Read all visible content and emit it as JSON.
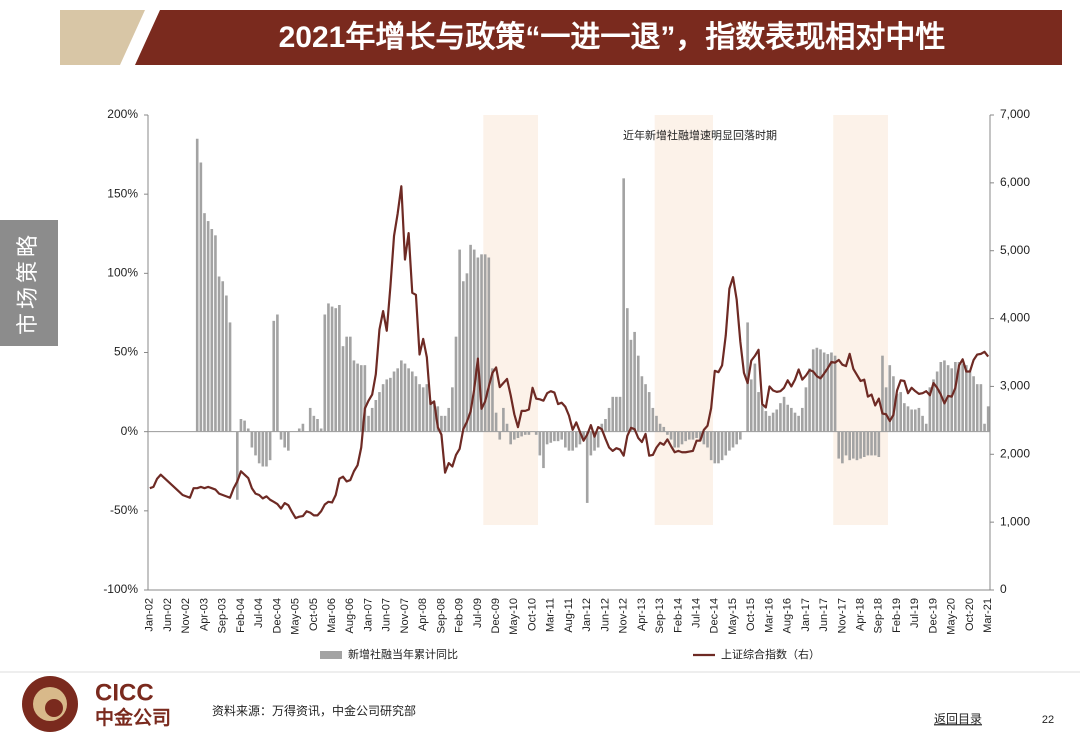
{
  "header": {
    "title": "2021年增长与政策“一进一退”，指数表现相对中性"
  },
  "sidebar": {
    "label": "市场策略"
  },
  "logo": {
    "en": "CICC",
    "zh": "中金公司"
  },
  "source": "资料来源：万得资讯，中金公司研究部",
  "footer": {
    "link": "返回目录",
    "page": 22
  },
  "chart_data": {
    "type": "combo",
    "annotation": "近年新增社融增速明显回落时期",
    "highlights": [
      {
        "from": 92,
        "to": 106
      },
      {
        "from": 139,
        "to": 154
      },
      {
        "from": 188,
        "to": 202
      }
    ],
    "categories": [
      "Jan-02",
      null,
      null,
      null,
      null,
      "Jun-02",
      null,
      null,
      null,
      null,
      "Nov-02",
      null,
      null,
      null,
      null,
      "Apr-03",
      null,
      null,
      null,
      null,
      "Sep-03",
      null,
      null,
      null,
      null,
      "Feb-04",
      null,
      null,
      null,
      null,
      "Jul-04",
      null,
      null,
      null,
      null,
      "Dec-04",
      null,
      null,
      null,
      null,
      "May-05",
      null,
      null,
      null,
      null,
      "Oct-05",
      null,
      null,
      null,
      null,
      "Mar-06",
      null,
      null,
      null,
      null,
      "Aug-06",
      null,
      null,
      null,
      null,
      "Jan-07",
      null,
      null,
      null,
      null,
      "Jun-07",
      null,
      null,
      null,
      null,
      "Nov-07",
      null,
      null,
      null,
      null,
      "Apr-08",
      null,
      null,
      null,
      null,
      "Sep-08",
      null,
      null,
      null,
      null,
      "Feb-09",
      null,
      null,
      null,
      null,
      "Jul-09",
      null,
      null,
      null,
      null,
      "Dec-09",
      null,
      null,
      null,
      null,
      "May-10",
      null,
      null,
      null,
      null,
      "Oct-10",
      null,
      null,
      null,
      null,
      "Mar-11",
      null,
      null,
      null,
      null,
      "Aug-11",
      null,
      null,
      null,
      null,
      "Jan-12",
      null,
      null,
      null,
      null,
      "Jun-12",
      null,
      null,
      null,
      null,
      "Nov-12",
      null,
      null,
      null,
      null,
      "Apr-13",
      null,
      null,
      null,
      null,
      "Sep-13",
      null,
      null,
      null,
      null,
      "Feb-14",
      null,
      null,
      null,
      null,
      "Jul-14",
      null,
      null,
      null,
      null,
      "Dec-14",
      null,
      null,
      null,
      null,
      "May-15",
      null,
      null,
      null,
      null,
      "Oct-15",
      null,
      null,
      null,
      null,
      "Mar-16",
      null,
      null,
      null,
      null,
      "Aug-16",
      null,
      null,
      null,
      null,
      "Jan-17",
      null,
      null,
      null,
      null,
      "Jun-17",
      null,
      null,
      null,
      null,
      "Nov-17",
      null,
      null,
      null,
      null,
      "Apr-18",
      null,
      null,
      null,
      null,
      "Sep-18",
      null,
      null,
      null,
      null,
      "Feb-19",
      null,
      null,
      null,
      null,
      "Jul-19",
      null,
      null,
      null,
      null,
      "Dec-19",
      null,
      null,
      null,
      null,
      "May-20",
      null,
      null,
      null,
      null,
      "Oct-20",
      null,
      null,
      null,
      null,
      "Mar-21"
    ],
    "series": [
      {
        "name": "新增社融当年累计同比",
        "type": "bar",
        "color": "#a3a3a3",
        "values": [
          null,
          null,
          null,
          null,
          null,
          null,
          null,
          null,
          null,
          null,
          null,
          null,
          null,
          185,
          170,
          138,
          133,
          128,
          124,
          98,
          95,
          86,
          69,
          0,
          -43,
          8,
          7,
          2,
          -10,
          -15,
          -20,
          -22,
          -22,
          -18,
          70,
          74,
          -5,
          -10,
          -12,
          0,
          0,
          2,
          5,
          0,
          15,
          10,
          8,
          2,
          74,
          81,
          79,
          78,
          80,
          54,
          60,
          60,
          45,
          43,
          42,
          42,
          10,
          15,
          20,
          25,
          30,
          33,
          34,
          38,
          40,
          45,
          43,
          40,
          38,
          35,
          30,
          28,
          30,
          20,
          18,
          16,
          10,
          10,
          15,
          28,
          60,
          115,
          95,
          100,
          118,
          115,
          110,
          112,
          112,
          110,
          40,
          12,
          -5,
          15,
          5,
          -8,
          -5,
          -4,
          -3,
          -2,
          -2,
          0,
          -2,
          -15,
          -23,
          -8,
          -7,
          -6,
          -6,
          -5,
          -10,
          -12,
          -12,
          -10,
          -8,
          -5,
          -45,
          -15,
          -12,
          -10,
          5,
          8,
          15,
          22,
          22,
          22,
          160,
          78,
          58,
          63,
          48,
          35,
          30,
          25,
          15,
          10,
          5,
          3,
          -2,
          -5,
          -10,
          -10,
          -8,
          -6,
          -5,
          -5,
          -4,
          -6,
          -8,
          -10,
          -18,
          -20,
          -20,
          -18,
          -15,
          -12,
          -10,
          -8,
          -5,
          0,
          69,
          33,
          43,
          25,
          17,
          13,
          10,
          12,
          14,
          18,
          22,
          17,
          15,
          12,
          10,
          15,
          28,
          40,
          52,
          53,
          52,
          50,
          49,
          50,
          48,
          -17,
          -20,
          -15,
          -18,
          -17,
          -18,
          -17,
          -16,
          -15,
          -15,
          -15,
          -16,
          48,
          28,
          42,
          35,
          24,
          25,
          18,
          16,
          14,
          14,
          15,
          10,
          5,
          28,
          33,
          38,
          44,
          45,
          42,
          40,
          44,
          44,
          43,
          42,
          38,
          35,
          30,
          30,
          5,
          16
        ]
      },
      {
        "name": "上证综合指数（右）",
        "type": "line",
        "axis": "y2",
        "color": "#6e2a24",
        "values": [
          1500,
          1520,
          1640,
          1700,
          1650,
          1600,
          1550,
          1500,
          1450,
          1400,
          1380,
          1360,
          1500,
          1500,
          1520,
          1500,
          1520,
          1500,
          1480,
          1420,
          1400,
          1380,
          1360,
          1500,
          1600,
          1750,
          1700,
          1650,
          1500,
          1420,
          1400,
          1350,
          1380,
          1330,
          1300,
          1266,
          1200,
          1280,
          1250,
          1150,
          1060,
          1080,
          1090,
          1160,
          1140,
          1100,
          1100,
          1160,
          1260,
          1300,
          1290,
          1400,
          1640,
          1670,
          1600,
          1620,
          1750,
          1840,
          2100,
          2675,
          2790,
          2880,
          3180,
          3840,
          4110,
          3820,
          4470,
          5220,
          5550,
          5950,
          4870,
          5260,
          4380,
          4350,
          3470,
          3700,
          3430,
          2740,
          2780,
          2400,
          2290,
          1730,
          1870,
          1820,
          1990,
          2080,
          2370,
          2480,
          2630,
          2960,
          3410,
          2670,
          2780,
          3000,
          3200,
          3280,
          2990,
          3050,
          3110,
          2870,
          2590,
          2400,
          2640,
          2640,
          2660,
          2980,
          2820,
          2810,
          2790,
          2900,
          2930,
          2910,
          2740,
          2760,
          2700,
          2570,
          2360,
          2470,
          2330,
          2200,
          2290,
          2430,
          2260,
          2400,
          2370,
          2230,
          2100,
          2050,
          2090,
          2070,
          1980,
          2270,
          2390,
          2370,
          2240,
          2180,
          2300,
          1980,
          1990,
          2100,
          2170,
          2140,
          2220,
          2120,
          2030,
          2050,
          2030,
          2030,
          2040,
          2050,
          2200,
          2200,
          2360,
          2420,
          2680,
          3230,
          3210,
          3310,
          3750,
          4440,
          4610,
          4280,
          3660,
          3200,
          3050,
          3380,
          3450,
          3540,
          2740,
          2690,
          3000,
          2940,
          2920,
          2930,
          2980,
          3090,
          3000,
          3100,
          3250,
          3100,
          3160,
          3240,
          3220,
          3150,
          3120,
          3190,
          3270,
          3360,
          3350,
          3390,
          3320,
          3300,
          3480,
          3260,
          3170,
          3080,
          3100,
          2850,
          2880,
          2720,
          2820,
          2600,
          2590,
          2490,
          2580,
          2940,
          3090,
          3080,
          2900,
          2980,
          2930,
          2890,
          2900,
          2930,
          2870,
          3050,
          2980,
          2880,
          2750,
          2860,
          2850,
          2980,
          3310,
          3400,
          3220,
          3220,
          3390,
          3470,
          3480,
          3510,
          3440
        ]
      }
    ],
    "ylim": [
      -100,
      200
    ],
    "yticks": [
      {
        "value": -100,
        "label": "-100%"
      },
      {
        "value": -50,
        "label": "-50%"
      },
      {
        "value": 0,
        "label": "0%"
      },
      {
        "value": 50,
        "label": "50%"
      },
      {
        "value": 100,
        "label": "100%"
      },
      {
        "value": 150,
        "label": "150%"
      },
      {
        "value": 200,
        "label": "200%"
      }
    ],
    "y2lim": [
      0,
      7000
    ],
    "y2ticks": [
      0,
      {
        "value": 1000,
        "label": "1,000"
      },
      {
        "value": 2000,
        "label": "2,000"
      },
      {
        "value": 3000,
        "label": "3,000"
      },
      {
        "value": 4000,
        "label": "4,000"
      },
      {
        "value": 5000,
        "label": "5,000"
      },
      {
        "value": 6000,
        "label": "6,000"
      },
      {
        "value": 7000,
        "label": "7,000"
      }
    ]
  }
}
